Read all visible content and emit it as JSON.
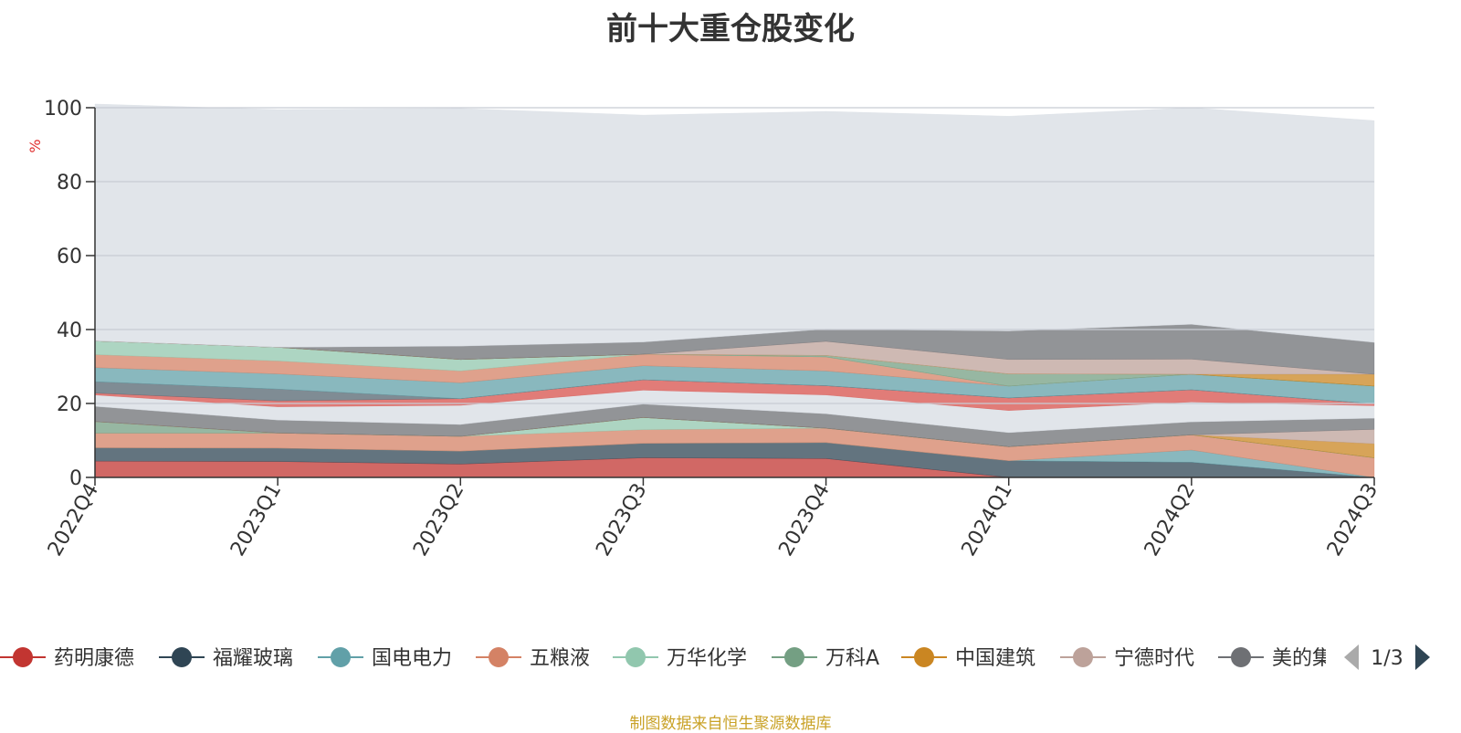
{
  "page": {
    "title": "前十大重仓股变化",
    "source_note": "制图数据来自恒生聚源数据库"
  },
  "legend": {
    "page_indicator": "1/3",
    "prev_icon": "triangle-left-icon",
    "next_icon": "triangle-right-icon"
  },
  "chart_data": {
    "type": "area",
    "stacked": true,
    "title": "前十大重仓股变化",
    "ylabel": "%",
    "ylim": [
      0,
      100
    ],
    "yticks": [
      0,
      20,
      40,
      60,
      80,
      100
    ],
    "grid": true,
    "legend_position": "bottom",
    "categories": [
      "2022Q4",
      "2023Q1",
      "2023Q2",
      "2023Q3",
      "2023Q4",
      "2024Q1",
      "2024Q2",
      "2024Q3"
    ],
    "series": [
      {
        "name": "药明康德",
        "color": "#c23531",
        "values": [
          4.4,
          4.3,
          3.6,
          5.3,
          5.1,
          0,
          0,
          0
        ]
      },
      {
        "name": "福耀玻璃",
        "color": "#2f4554",
        "values": [
          3.6,
          3.6,
          3.5,
          3.9,
          4.3,
          4.5,
          4.1,
          0
        ]
      },
      {
        "name": "国电电力",
        "color": "#61a0a8",
        "values": [
          0,
          0,
          0,
          0,
          0,
          0,
          3.3,
          0
        ]
      },
      {
        "name": "五粮液",
        "color": "#d48265",
        "values": [
          4.0,
          4.1,
          4.0,
          3.7,
          3.9,
          3.8,
          4.1,
          5.3
        ]
      },
      {
        "name": "万华化学",
        "color": "#91c7ae",
        "values": [
          0,
          0,
          0,
          3.3,
          0,
          0,
          0,
          0
        ]
      },
      {
        "name": "万科A",
        "color": "#749f83",
        "values": [
          3.1,
          0,
          0,
          0,
          0,
          0,
          0,
          0
        ]
      },
      {
        "name": "中国建筑",
        "color": "#ca8622",
        "values": [
          0,
          0,
          0,
          0,
          0,
          0,
          0,
          3.8
        ]
      },
      {
        "name": "宁德时代",
        "color": "#bda29a",
        "values": [
          0,
          0,
          0,
          0,
          0,
          0,
          0,
          3.9
        ]
      },
      {
        "name": "美的集团",
        "color": "#6e7074",
        "values": [
          4.1,
          3.5,
          3.2,
          3.6,
          3.9,
          3.8,
          3.5,
          3.0
        ]
      },
      {
        "name": "",
        "color": "#d7dce3",
        "values": [
          3.1,
          3.6,
          5.2,
          3.8,
          5.1,
          6.0,
          5.4,
          3.4
        ]
      },
      {
        "name": "",
        "color": "#d7504b",
        "values": [
          0.5,
          1.6,
          1.8,
          2.8,
          2.5,
          3.4,
          3.3,
          0.5
        ]
      },
      {
        "name": "",
        "color": "#546570",
        "values": [
          3.1,
          3.2,
          0,
          0,
          0,
          0,
          0,
          0
        ]
      },
      {
        "name": "",
        "color": "#61a0a8",
        "values": [
          3.8,
          4.1,
          4.3,
          3.8,
          4.0,
          3.2,
          4.2,
          4.8
        ]
      },
      {
        "name": "",
        "color": "#d48265",
        "values": [
          3.5,
          3.5,
          3.2,
          3.1,
          3.8,
          0,
          0,
          0
        ]
      },
      {
        "name": "",
        "color": "#91c7ae",
        "values": [
          3.7,
          3.7,
          3.1,
          0,
          0,
          0,
          0,
          0
        ]
      },
      {
        "name": "",
        "color": "#749f83",
        "values": [
          0,
          0,
          0,
          0,
          0.4,
          3.3,
          0,
          0
        ]
      },
      {
        "name": "",
        "color": "#ca8622",
        "values": [
          0,
          0,
          0,
          0,
          0,
          0,
          0,
          3.2
        ]
      },
      {
        "name": "",
        "color": "#bda29a",
        "values": [
          0,
          0,
          0,
          0,
          3.8,
          3.9,
          4.1,
          0
        ]
      },
      {
        "name": "",
        "color": "#6e7074",
        "values": [
          0,
          0,
          3.6,
          3.3,
          3.3,
          7.7,
          9.4,
          8.6
        ]
      },
      {
        "name": "",
        "color": "#d7dce3",
        "values": [
          64.1,
          64.3,
          64.3,
          61.4,
          58.9,
          58.1,
          58.6,
          60.0
        ]
      }
    ]
  }
}
